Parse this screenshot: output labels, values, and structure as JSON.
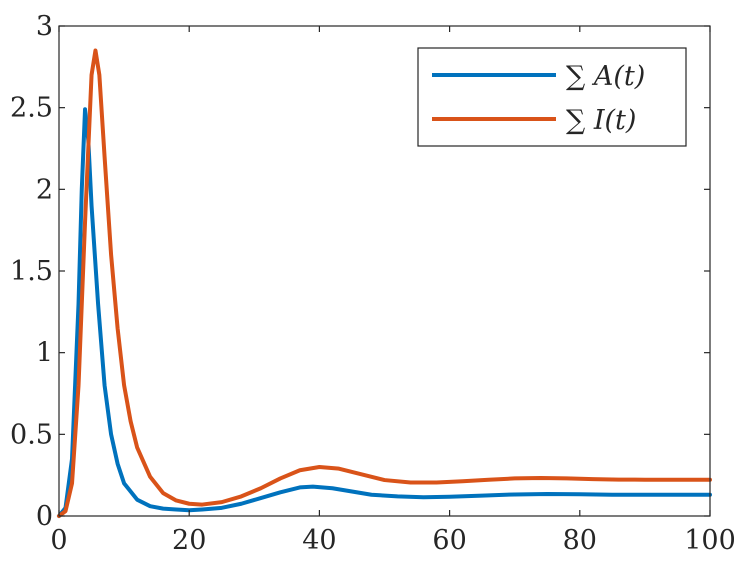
{
  "chart_data": {
    "type": "line",
    "title": "",
    "xlabel": "",
    "ylabel": "",
    "xlim": [
      0,
      100
    ],
    "ylim": [
      0,
      3
    ],
    "x_ticks": [
      0,
      20,
      40,
      60,
      80,
      100
    ],
    "y_ticks": [
      0,
      0.5,
      1,
      1.5,
      2,
      2.5,
      3
    ],
    "x_tick_labels": [
      "0",
      "20",
      "40",
      "60",
      "80",
      "100"
    ],
    "y_tick_labels": [
      "0",
      "0.5",
      "1",
      "1.5",
      "2",
      "2.5",
      "3"
    ],
    "grid": false,
    "legend_position": "top-right",
    "series": [
      {
        "name": "∑ A(t)",
        "color": "#0072BD",
        "points": [
          [
            0,
            0
          ],
          [
            1,
            0.05
          ],
          [
            2,
            0.35
          ],
          [
            3,
            1.3
          ],
          [
            3.5,
            2.0
          ],
          [
            4,
            2.49
          ],
          [
            4.5,
            2.3
          ],
          [
            5,
            1.9
          ],
          [
            6,
            1.3
          ],
          [
            7,
            0.8
          ],
          [
            8,
            0.5
          ],
          [
            9,
            0.32
          ],
          [
            10,
            0.2
          ],
          [
            12,
            0.1
          ],
          [
            14,
            0.06
          ],
          [
            16,
            0.045
          ],
          [
            18,
            0.04
          ],
          [
            20,
            0.035
          ],
          [
            22,
            0.04
          ],
          [
            25,
            0.05
          ],
          [
            28,
            0.075
          ],
          [
            31,
            0.11
          ],
          [
            34,
            0.145
          ],
          [
            37,
            0.175
          ],
          [
            39,
            0.18
          ],
          [
            42,
            0.17
          ],
          [
            45,
            0.15
          ],
          [
            48,
            0.13
          ],
          [
            52,
            0.12
          ],
          [
            56,
            0.115
          ],
          [
            60,
            0.118
          ],
          [
            65,
            0.125
          ],
          [
            70,
            0.132
          ],
          [
            75,
            0.135
          ],
          [
            80,
            0.133
          ],
          [
            85,
            0.13
          ],
          [
            90,
            0.13
          ],
          [
            95,
            0.13
          ],
          [
            100,
            0.13
          ]
        ]
      },
      {
        "name": "∑ I(t)",
        "color": "#D95319",
        "points": [
          [
            0,
            0
          ],
          [
            1,
            0.03
          ],
          [
            2,
            0.2
          ],
          [
            3,
            0.8
          ],
          [
            4,
            1.8
          ],
          [
            5,
            2.7
          ],
          [
            5.6,
            2.85
          ],
          [
            6.2,
            2.7
          ],
          [
            7,
            2.2
          ],
          [
            8,
            1.6
          ],
          [
            9,
            1.15
          ],
          [
            10,
            0.8
          ],
          [
            11,
            0.58
          ],
          [
            12,
            0.42
          ],
          [
            14,
            0.24
          ],
          [
            16,
            0.14
          ],
          [
            18,
            0.095
          ],
          [
            20,
            0.075
          ],
          [
            22,
            0.07
          ],
          [
            25,
            0.085
          ],
          [
            28,
            0.12
          ],
          [
            31,
            0.17
          ],
          [
            34,
            0.23
          ],
          [
            37,
            0.28
          ],
          [
            40,
            0.3
          ],
          [
            43,
            0.29
          ],
          [
            46,
            0.26
          ],
          [
            50,
            0.22
          ],
          [
            54,
            0.205
          ],
          [
            58,
            0.205
          ],
          [
            62,
            0.213
          ],
          [
            66,
            0.222
          ],
          [
            70,
            0.23
          ],
          [
            74,
            0.233
          ],
          [
            78,
            0.23
          ],
          [
            82,
            0.226
          ],
          [
            86,
            0.223
          ],
          [
            90,
            0.222
          ],
          [
            95,
            0.222
          ],
          [
            100,
            0.222
          ]
        ]
      }
    ]
  },
  "legend": {
    "items": [
      {
        "label": "∑ A(t)",
        "color": "#0072BD"
      },
      {
        "label": "∑ I(t)",
        "color": "#D95319"
      }
    ]
  }
}
